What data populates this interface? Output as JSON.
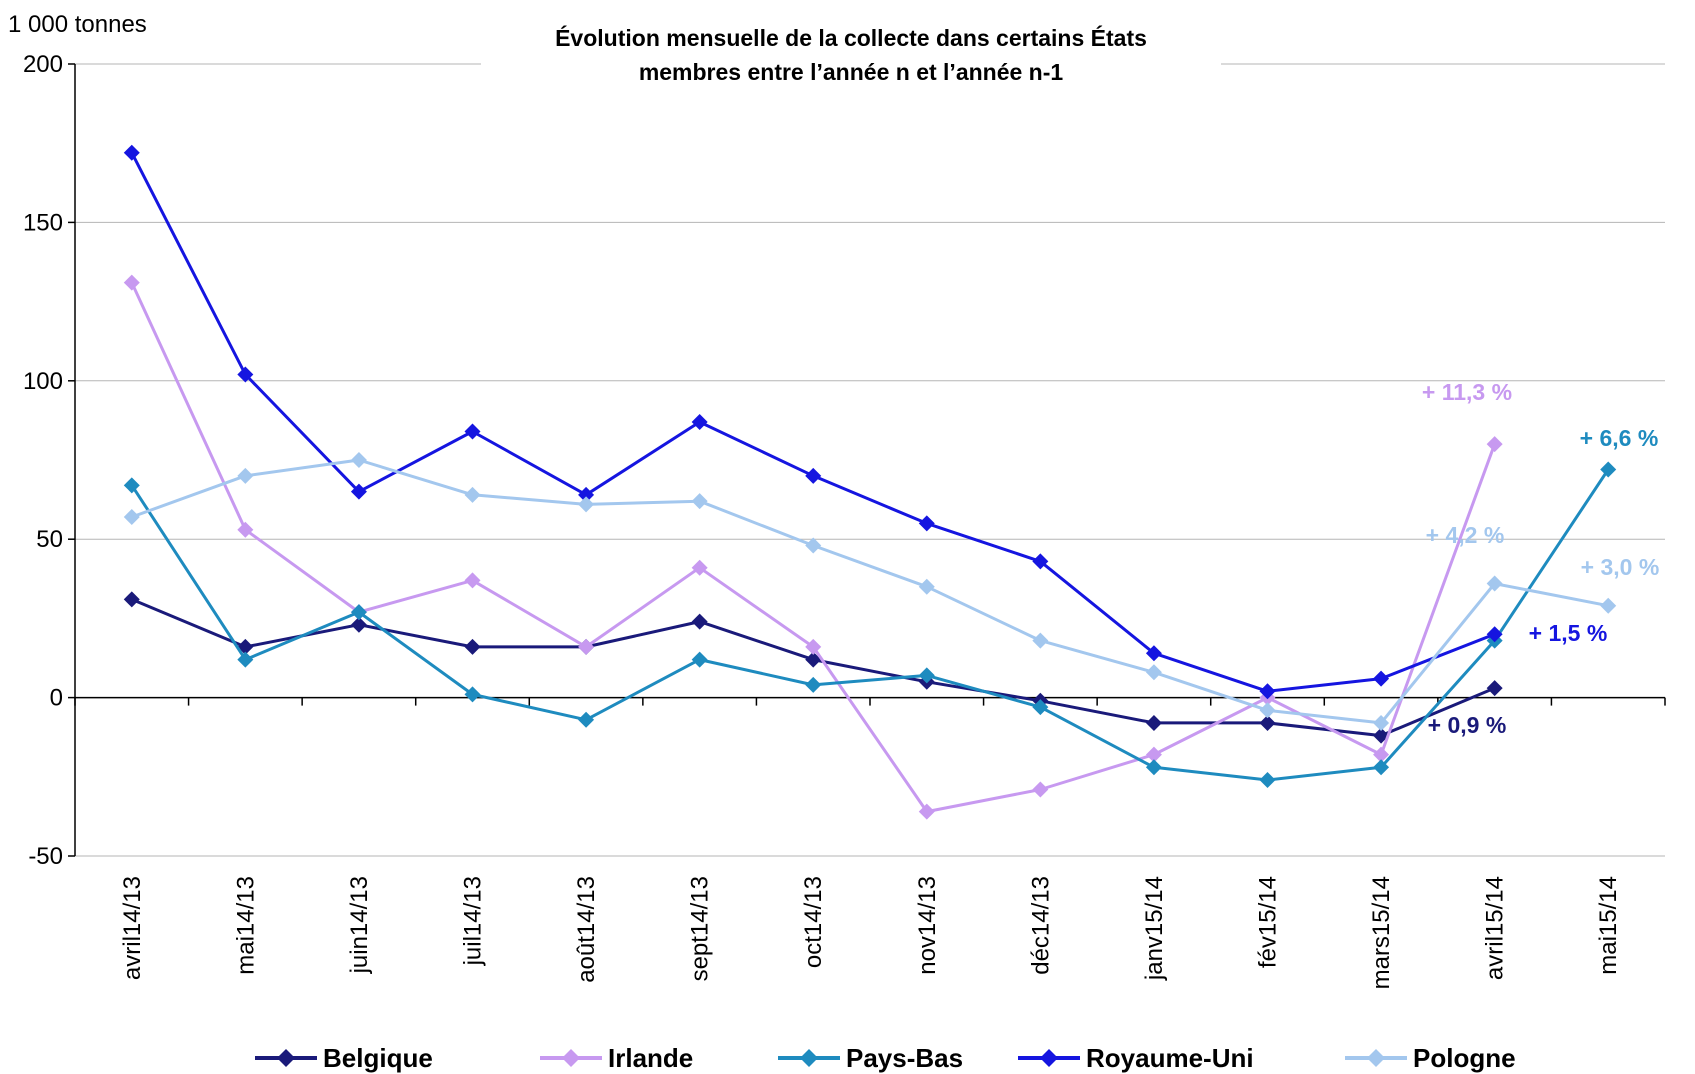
{
  "chart_data": {
    "type": "line",
    "title_line1": "Évolution mensuelle de la collecte dans certains États",
    "title_line2": "membres entre l’année n et l’année n-1",
    "unit_label": "1 000 tonnes",
    "categories": [
      "avril14/13",
      "mai14/13",
      "juin14/13",
      "juil14/13",
      "août14/13",
      "sept14/13",
      "oct14/13",
      "nov14/13",
      "déc14/13",
      "janv15/14",
      "fév15/14",
      "mars15/14",
      "avril15/14",
      "mai15/14"
    ],
    "ylim": [
      -50,
      200
    ],
    "yticks": [
      "-50",
      "0",
      "50",
      "100",
      "150",
      "200"
    ],
    "grid": true,
    "legend_position": "bottom",
    "series": [
      {
        "name": "Belgique",
        "color": "#1a1a7a",
        "values": [
          31,
          16,
          23,
          16,
          16,
          24,
          12,
          5,
          -1,
          -8,
          -8,
          -12,
          3,
          null
        ]
      },
      {
        "name": "Irlande",
        "color": "#c799f0",
        "values": [
          131,
          53,
          27,
          37,
          16,
          41,
          16,
          -36,
          -29,
          -18,
          0,
          -18,
          80,
          null
        ]
      },
      {
        "name": "Pays-Bas",
        "color": "#1e8bbf",
        "values": [
          67,
          12,
          27,
          1,
          -7,
          12,
          4,
          7,
          -3,
          -22,
          -26,
          -22,
          18,
          72
        ]
      },
      {
        "name": "Royaume-Uni",
        "color": "#1515e0",
        "values": [
          172,
          102,
          65,
          84,
          64,
          87,
          70,
          55,
          43,
          14,
          2,
          6,
          20,
          null
        ]
      },
      {
        "name": "Pologne",
        "color": "#a3c7ee",
        "values": [
          57,
          70,
          75,
          64,
          61,
          62,
          48,
          35,
          18,
          8,
          -4,
          -8,
          36,
          29
        ]
      }
    ],
    "annotations": [
      {
        "text": "+ 11,3 %",
        "color": "#c799f0"
      },
      {
        "text": "+ 6,6 %",
        "color": "#1e8bbf"
      },
      {
        "text": "+ 4,2 %",
        "color": "#a3c7ee"
      },
      {
        "text": "+ 3,0 %",
        "color": "#a3c7ee"
      },
      {
        "text": "+ 1,5 %",
        "color": "#1515e0"
      },
      {
        "text": "+ 0,9 %",
        "color": "#1a1a7a"
      }
    ]
  }
}
